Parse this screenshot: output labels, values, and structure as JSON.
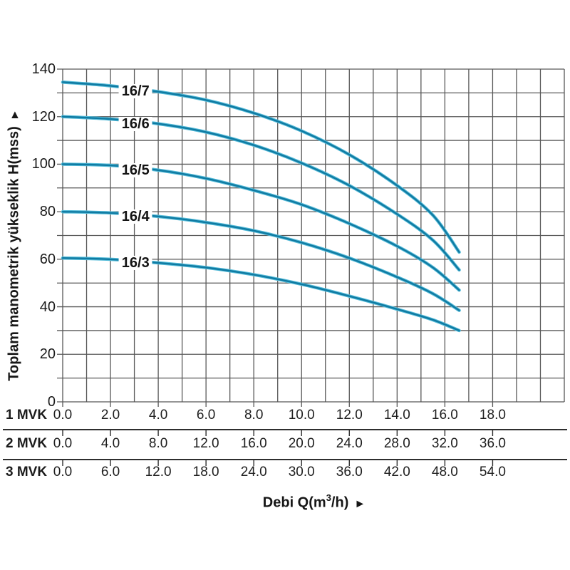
{
  "page": {
    "background": "#ffffff",
    "text_color": "#1b1b1b"
  },
  "y_axis": {
    "title": "Toplam manometrik yükseklik H(mss)",
    "arrow": "►"
  },
  "x_axis": {
    "title_pre": "Debi Q(m",
    "title_sup": "3",
    "title_post": "/h)",
    "arrow": "►"
  },
  "chart_data": {
    "type": "line",
    "title": "",
    "ylabel": "Toplam manometrik yükseklik H(mss)",
    "xlabel": "Debi Q(m3/h)",
    "ylim": [
      0,
      140
    ],
    "y_ticks": [
      "140",
      "120",
      "100",
      "80",
      "60",
      "40",
      "20",
      "0"
    ],
    "x_units_shown": 21,
    "grid": true,
    "legend_position": "on-curve",
    "x_axis_rows": [
      {
        "label": "1 MVK",
        "values": [
          "0.0",
          "2.0",
          "4.0",
          "6.0",
          "8.0",
          "10.0",
          "12.0",
          "14.0",
          "16.0",
          "18.0"
        ]
      },
      {
        "label": "2 MVK",
        "values": [
          "0.0",
          "4.0",
          "8.0",
          "12.0",
          "16.0",
          "20.0",
          "24.0",
          "28.0",
          "32.0",
          "36.0"
        ]
      },
      {
        "label": "3 MVK",
        "values": [
          "0.0",
          "6.0",
          "12.0",
          "18.0",
          "24.0",
          "30.0",
          "36.0",
          "42.0",
          "48.0",
          "54.0"
        ]
      }
    ],
    "series": [
      {
        "name": "16/7",
        "points": [
          [
            0,
            134.5
          ],
          [
            2,
            133
          ],
          [
            4,
            130.5
          ],
          [
            6,
            127
          ],
          [
            8,
            121.5
          ],
          [
            10,
            114
          ],
          [
            12,
            104
          ],
          [
            14,
            91
          ],
          [
            15.5,
            78.5
          ],
          [
            16.6,
            63
          ]
        ]
      },
      {
        "name": "16/6",
        "points": [
          [
            0,
            120
          ],
          [
            2,
            119
          ],
          [
            4,
            117
          ],
          [
            6,
            113.5
          ],
          [
            8,
            108
          ],
          [
            10,
            100.5
          ],
          [
            12,
            91
          ],
          [
            14,
            79
          ],
          [
            15.5,
            68
          ],
          [
            16.6,
            55.5
          ]
        ]
      },
      {
        "name": "16/5",
        "points": [
          [
            0,
            100
          ],
          [
            2,
            99.5
          ],
          [
            4,
            97.5
          ],
          [
            6,
            94
          ],
          [
            8,
            89
          ],
          [
            10,
            83
          ],
          [
            12,
            75
          ],
          [
            14,
            65.5
          ],
          [
            15.5,
            56.5
          ],
          [
            16.6,
            47
          ]
        ]
      },
      {
        "name": "16/4",
        "points": [
          [
            0,
            80
          ],
          [
            2,
            79.5
          ],
          [
            4,
            78
          ],
          [
            6,
            75.5
          ],
          [
            8,
            72
          ],
          [
            10,
            67
          ],
          [
            12,
            60.5
          ],
          [
            14,
            52.5
          ],
          [
            15.5,
            45.5
          ],
          [
            16.6,
            38.5
          ]
        ]
      },
      {
        "name": "16/3",
        "points": [
          [
            0,
            60.5
          ],
          [
            2,
            60
          ],
          [
            4,
            58.5
          ],
          [
            6,
            56.5
          ],
          [
            8,
            53.5
          ],
          [
            10,
            49.5
          ],
          [
            12,
            44.5
          ],
          [
            14,
            39
          ],
          [
            15.5,
            34.5
          ],
          [
            16.6,
            30
          ]
        ]
      }
    ],
    "colors": {
      "curve_core": "#0f7aa2",
      "curve_light": "#54bbd8",
      "grid": "#585858",
      "separator": "#2e2e2e"
    }
  }
}
